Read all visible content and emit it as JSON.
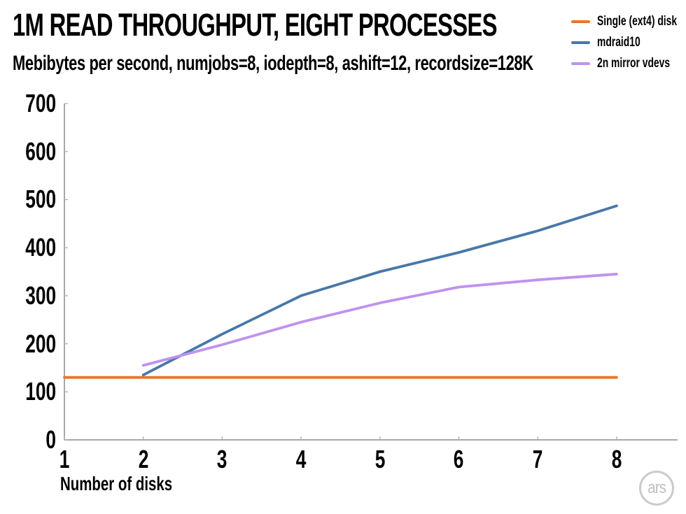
{
  "chart_data": {
    "type": "line",
    "title": "1M READ THROUGHPUT, EIGHT PROCESSES",
    "subtitle": "Mebibytes per second, numjobs=8, iodepth=8, ashift=12, recordsize=128K",
    "xlabel": "Number of disks",
    "ylabel": "",
    "xlim": [
      1,
      8
    ],
    "ylim": [
      0,
      700
    ],
    "x_ticks": [
      1,
      2,
      3,
      4,
      5,
      6,
      7,
      8
    ],
    "y_ticks": [
      0,
      100,
      200,
      300,
      400,
      500,
      600,
      700
    ],
    "grid": false,
    "legend_position": "top-right",
    "series": [
      {
        "name": "Single (ext4) disk",
        "color": "#EB7524",
        "x": [
          1,
          2,
          3,
          4,
          5,
          6,
          7,
          8
        ],
        "values": [
          130,
          130,
          130,
          130,
          130,
          130,
          130,
          130
        ]
      },
      {
        "name": "mdraid10",
        "color": "#4878A8",
        "x": [
          2,
          3,
          4,
          5,
          6,
          7,
          8
        ],
        "values": [
          135,
          220,
          300,
          350,
          390,
          435,
          487
        ]
      },
      {
        "name": "2n mirror vdevs",
        "color": "#BE92EE",
        "x": [
          2,
          3,
          4,
          5,
          6,
          7,
          8
        ],
        "values": [
          155,
          198,
          245,
          285,
          318,
          333,
          345
        ]
      }
    ]
  },
  "branding": {
    "logo_text": "ars"
  }
}
